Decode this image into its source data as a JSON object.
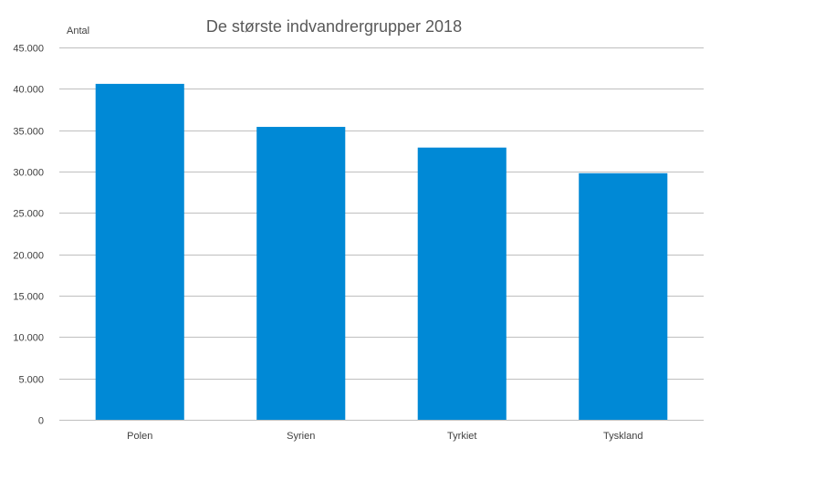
{
  "chart_data": {
    "type": "bar",
    "title": "De største  indvandrergrupper 2018",
    "ylabel": "Antal",
    "xlabel": "",
    "categories": [
      "Polen",
      "Syrien",
      "Tyrkiet",
      "Tyskland"
    ],
    "values": [
      40600,
      35400,
      32900,
      29800
    ],
    "ylim": [
      0,
      45000
    ],
    "yticks": [
      "0",
      "5.000",
      "10.000",
      "15.000",
      "20.000",
      "25.000",
      "30.000",
      "35.000",
      "40.000",
      "45.000"
    ],
    "ytick_values": [
      0,
      5000,
      10000,
      15000,
      20000,
      25000,
      30000,
      35000,
      40000,
      45000
    ],
    "grid": true,
    "legend": "none",
    "bar_color": "#0089d6"
  }
}
